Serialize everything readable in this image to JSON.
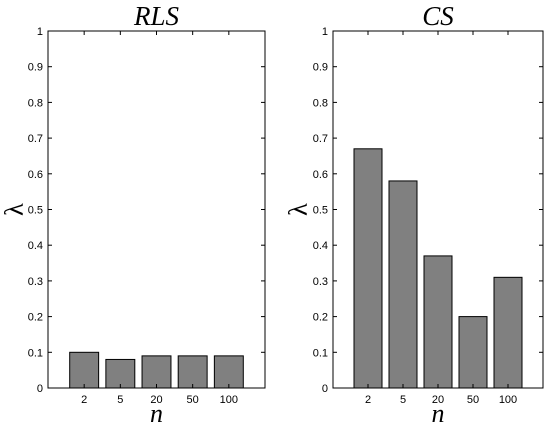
{
  "chart_data": [
    {
      "type": "bar",
      "title": "RLS",
      "xlabel": "n",
      "ylabel": "λ",
      "categories": [
        "2",
        "5",
        "20",
        "50",
        "100"
      ],
      "values": [
        0.1,
        0.08,
        0.09,
        0.09,
        0.09
      ],
      "ylim": [
        0,
        1
      ],
      "yticks": [
        "0",
        "0.1",
        "0.2",
        "0.3",
        "0.4",
        "0.5",
        "0.6",
        "0.7",
        "0.8",
        "0.9",
        "1"
      ],
      "grid": false,
      "bar_color": "#808080"
    },
    {
      "type": "bar",
      "title": "CS",
      "xlabel": "n",
      "ylabel": "λ",
      "categories": [
        "2",
        "5",
        "20",
        "50",
        "100"
      ],
      "values": [
        0.67,
        0.58,
        0.37,
        0.2,
        0.31
      ],
      "ylim": [
        0,
        1
      ],
      "yticks": [
        "0",
        "0.1",
        "0.2",
        "0.3",
        "0.4",
        "0.5",
        "0.6",
        "0.7",
        "0.8",
        "0.9",
        "1"
      ],
      "grid": false,
      "bar_color": "#808080"
    }
  ]
}
